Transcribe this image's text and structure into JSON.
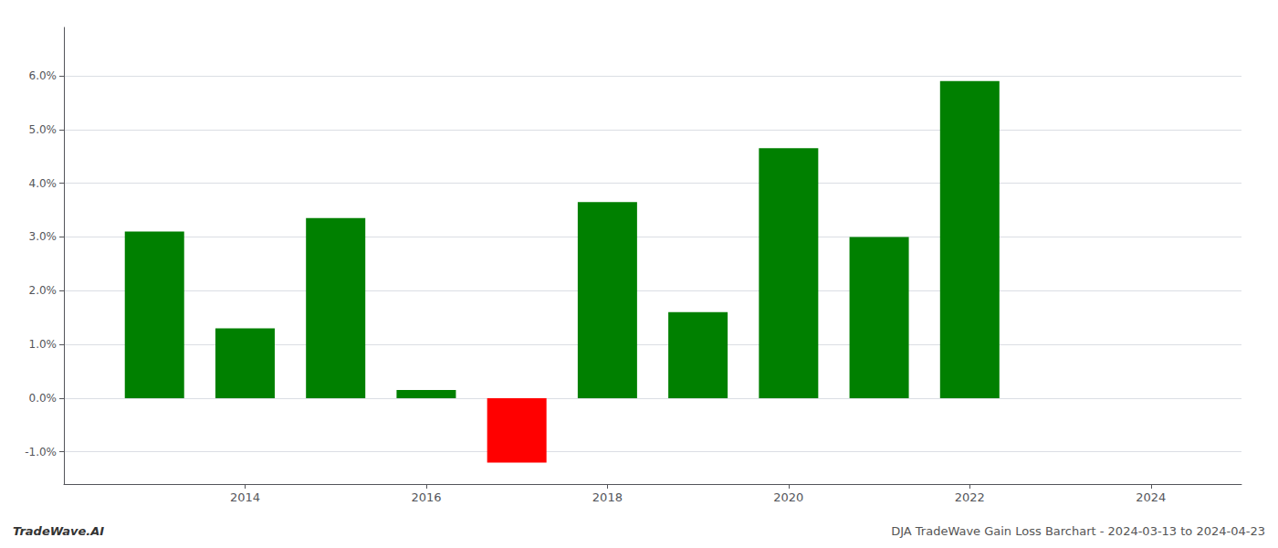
{
  "chart_data": {
    "type": "bar",
    "x": [
      2013,
      2014,
      2015,
      2016,
      2017,
      2018,
      2019,
      2020,
      2021,
      2022
    ],
    "values": [
      0.031,
      0.013,
      0.0335,
      0.0015,
      -0.012,
      0.0365,
      0.016,
      0.0465,
      0.03,
      0.059
    ],
    "colors": [
      "#008000",
      "#008000",
      "#008000",
      "#008000",
      "#ff0000",
      "#008000",
      "#008000",
      "#008000",
      "#008000",
      "#008000"
    ],
    "xlim": [
      2012.0,
      2025.0
    ],
    "xticks": [
      2014,
      2016,
      2018,
      2020,
      2022,
      2024
    ],
    "ylim": [
      -0.016,
      0.069
    ],
    "yticks": [
      {
        "value": -0.01,
        "label": "-1.0%"
      },
      {
        "value": 0.0,
        "label": "0.0%"
      },
      {
        "value": 0.01,
        "label": "1.0%"
      },
      {
        "value": 0.02,
        "label": "2.0%"
      },
      {
        "value": 0.03,
        "label": "3.0%"
      },
      {
        "value": 0.04,
        "label": "4.0%"
      },
      {
        "value": 0.05,
        "label": "5.0%"
      },
      {
        "value": 0.06,
        "label": "6.0%"
      }
    ],
    "grid": true,
    "annotations": [
      "TradeWave.AI",
      "DJA TradeWave Gain Loss Barchart - 2024-03-13 to 2024-04-23"
    ]
  }
}
